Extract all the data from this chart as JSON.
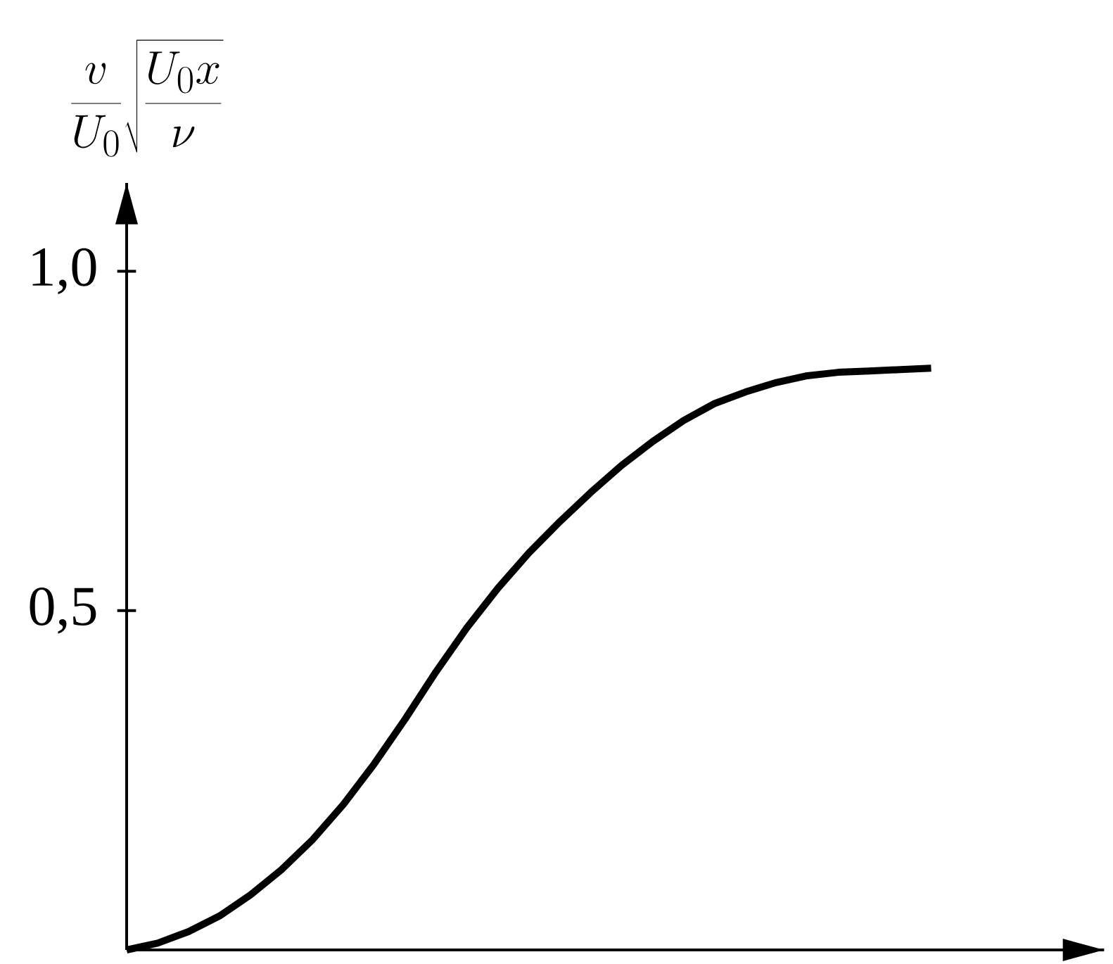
{
  "chart_data": {
    "type": "line",
    "ylabel": "\\frac{v}{U_0}\\sqrt{\\frac{U_0 x}{\\nu}}",
    "categories": [
      null,
      null,
      null,
      null,
      null,
      null,
      null,
      null,
      null,
      null,
      null,
      null,
      null,
      null,
      null,
      null,
      null,
      null,
      null,
      null,
      null,
      null,
      null,
      null,
      null,
      null,
      null
    ],
    "values": [
      0,
      0.01,
      0.027,
      0.05,
      0.081,
      0.118,
      0.162,
      0.214,
      0.274,
      0.34,
      0.41,
      0.475,
      0.533,
      0.585,
      0.631,
      0.674,
      0.714,
      0.749,
      0.78,
      0.805,
      0.822,
      0.836,
      0.846,
      0.851,
      0.853,
      0.855,
      0.857
    ],
    "color": "#000000",
    "ylim": [
      0,
      1.13
    ],
    "yticks": [
      {
        "value": 0.5,
        "label": "0,5"
      },
      {
        "value": 1,
        "label": "1,0"
      }
    ],
    "tick_labels": "y",
    "marker": "none"
  }
}
